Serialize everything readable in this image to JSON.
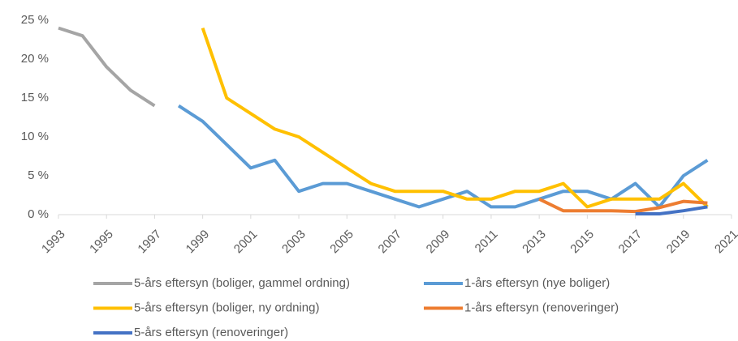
{
  "chart_data": {
    "type": "line",
    "x": [
      1993,
      1994,
      1995,
      1996,
      1997,
      1998,
      1999,
      2000,
      2001,
      2002,
      2003,
      2004,
      2005,
      2006,
      2007,
      2008,
      2009,
      2010,
      2011,
      2012,
      2013,
      2014,
      2015,
      2016,
      2017,
      2018,
      2019,
      2020
    ],
    "xlim": [
      1993,
      2021
    ],
    "xticks": [
      1993,
      1995,
      1997,
      1999,
      2001,
      2003,
      2005,
      2007,
      2009,
      2011,
      2013,
      2015,
      2017,
      2019,
      2021
    ],
    "ylim": [
      0,
      25
    ],
    "yticks": [
      {
        "value": 0,
        "label": "0 %"
      },
      {
        "value": 5,
        "label": "5 %"
      },
      {
        "value": 10,
        "label": "10 %"
      },
      {
        "value": 15,
        "label": "15 %"
      },
      {
        "value": 20,
        "label": "20 %"
      },
      {
        "value": 25,
        "label": "25 %"
      }
    ],
    "series": [
      {
        "name": "5-års eftersyn (boliger, gammel ordning)",
        "color": "#a5a5a5",
        "values": [
          24,
          23,
          19,
          16,
          14,
          null,
          null,
          null,
          null,
          null,
          null,
          null,
          null,
          null,
          null,
          null,
          null,
          null,
          null,
          null,
          null,
          null,
          null,
          null,
          null,
          null,
          null,
          null
        ]
      },
      {
        "name": "1-års eftersyn (nye boliger)",
        "color": "#5b9bd5",
        "values": [
          null,
          null,
          null,
          null,
          null,
          14,
          12,
          9,
          6,
          7,
          3,
          4,
          4,
          3,
          2,
          1,
          2,
          3,
          1,
          1,
          2,
          3,
          3,
          2,
          4,
          1,
          5,
          7
        ]
      },
      {
        "name": "5-års eftersyn (boliger, ny ordning)",
        "color": "#ffc000",
        "values": [
          null,
          null,
          null,
          null,
          null,
          null,
          24,
          15,
          13,
          11,
          10,
          8,
          6,
          4,
          3,
          3,
          3,
          2,
          2,
          3,
          3,
          4,
          1,
          2,
          2,
          2,
          4,
          1
        ]
      },
      {
        "name": "1-års eftersyn (renoveringer)",
        "color": "#ed7d31",
        "values": [
          null,
          null,
          null,
          null,
          null,
          null,
          null,
          null,
          null,
          null,
          null,
          null,
          null,
          null,
          null,
          null,
          null,
          null,
          null,
          null,
          2,
          0.5,
          0.5,
          0.5,
          0.4,
          0.9,
          1.7,
          1.5
        ]
      },
      {
        "name": "5-års eftersyn (renoveringer)",
        "color": "#4472c4",
        "values": [
          null,
          null,
          null,
          null,
          null,
          null,
          null,
          null,
          null,
          null,
          null,
          null,
          null,
          null,
          null,
          null,
          null,
          null,
          null,
          null,
          null,
          null,
          null,
          null,
          0.1,
          0.1,
          0.5,
          1.0
        ]
      }
    ]
  }
}
